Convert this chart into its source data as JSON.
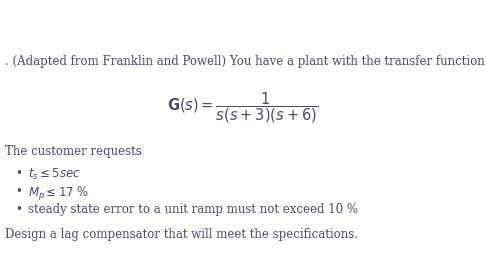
{
  "background_color": "#ffffff",
  "header_text": ". (Adapted from Franklin and Powell) You have a plant with the transfer function",
  "section_label": "The customer requests",
  "bullet3_text": "steady state error to a unit ramp must not exceed 10 %",
  "footer_text": "Design a lag compensator that will meet the specifications.",
  "text_color": "#4a4a6a",
  "font_size": 8.5,
  "tf_fontsize": 10.5
}
